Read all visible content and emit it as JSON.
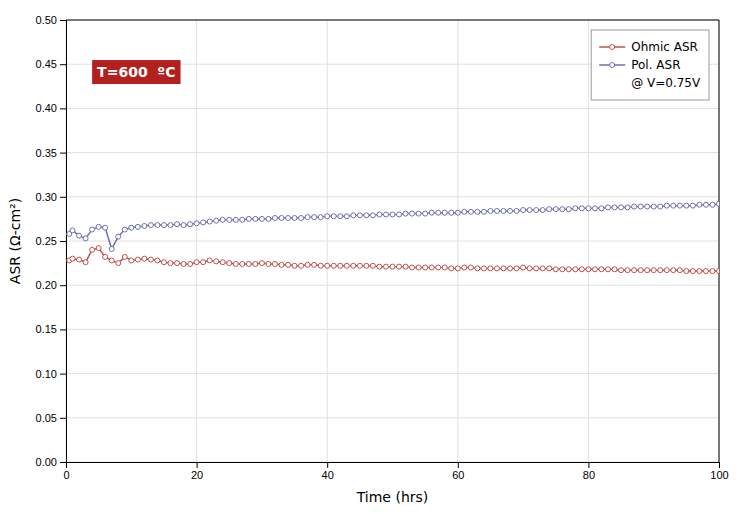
{
  "chart_data": {
    "type": "line",
    "xlabel": "Time (hrs)",
    "ylabel": "ASR (Ω-cm²)",
    "xlim": [
      0,
      100
    ],
    "ylim": [
      0.0,
      0.5
    ],
    "xticks": [
      0,
      20,
      40,
      60,
      80,
      100
    ],
    "yticks": [
      {
        "value": 0.0,
        "label": "0.00"
      },
      {
        "value": 0.05,
        "label": "0.05"
      },
      {
        "value": 0.1,
        "label": "0.10"
      },
      {
        "value": 0.15,
        "label": "0.15"
      },
      {
        "value": 0.2,
        "label": "0.20"
      },
      {
        "value": 0.25,
        "label": "0.25"
      },
      {
        "value": 0.3,
        "label": "0.30"
      },
      {
        "value": 0.35,
        "label": "0.35"
      },
      {
        "value": 0.4,
        "label": "0.40"
      },
      {
        "value": 0.45,
        "label": "0.45"
      },
      {
        "value": 0.5,
        "label": "0.50"
      }
    ],
    "grid": true,
    "legend": "top-right",
    "legend_note": "@ V=0.75V",
    "annotations": [
      {
        "text": "T=600  ºC",
        "color": "#B22020"
      }
    ],
    "x": [
      0.5,
      1,
      2,
      3,
      4,
      5,
      6,
      7,
      8,
      9,
      10,
      11,
      12,
      13,
      14,
      15,
      16,
      17,
      18,
      19,
      20,
      21,
      22,
      23,
      24,
      25,
      26,
      27,
      28,
      29,
      30,
      31,
      32,
      33,
      34,
      35,
      36,
      37,
      38,
      39,
      40,
      41,
      42,
      43,
      44,
      45,
      46,
      47,
      48,
      49,
      50,
      51,
      52,
      53,
      54,
      55,
      56,
      57,
      58,
      59,
      60,
      61,
      62,
      63,
      64,
      65,
      66,
      67,
      68,
      69,
      70,
      71,
      72,
      73,
      74,
      75,
      76,
      77,
      78,
      79,
      80,
      81,
      82,
      83,
      84,
      85,
      86,
      87,
      88,
      89,
      90,
      91,
      92,
      93,
      94,
      95,
      96,
      97,
      98,
      99,
      100
    ],
    "series": [
      {
        "name": "Ohmic ASR",
        "color": "#C0504D",
        "marker": "circle",
        "values": [
          0.228,
          0.23,
          0.229,
          0.226,
          0.24,
          0.242,
          0.232,
          0.228,
          0.225,
          0.232,
          0.228,
          0.229,
          0.23,
          0.229,
          0.228,
          0.226,
          0.225,
          0.225,
          0.224,
          0.224,
          0.226,
          0.226,
          0.228,
          0.227,
          0.226,
          0.225,
          0.224,
          0.224,
          0.224,
          0.224,
          0.225,
          0.224,
          0.224,
          0.223,
          0.223,
          0.222,
          0.222,
          0.223,
          0.223,
          0.222,
          0.222,
          0.222,
          0.222,
          0.222,
          0.222,
          0.222,
          0.222,
          0.222,
          0.221,
          0.221,
          0.221,
          0.221,
          0.221,
          0.22,
          0.22,
          0.22,
          0.22,
          0.22,
          0.22,
          0.219,
          0.219,
          0.22,
          0.22,
          0.219,
          0.219,
          0.219,
          0.219,
          0.219,
          0.219,
          0.219,
          0.22,
          0.219,
          0.219,
          0.219,
          0.219,
          0.218,
          0.218,
          0.218,
          0.218,
          0.218,
          0.218,
          0.218,
          0.218,
          0.218,
          0.218,
          0.217,
          0.217,
          0.217,
          0.217,
          0.217,
          0.217,
          0.217,
          0.217,
          0.217,
          0.217,
          0.216,
          0.216,
          0.216,
          0.216,
          0.216,
          0.216
        ]
      },
      {
        "name": "Pol. ASR",
        "color": "#7070B0",
        "marker": "circle",
        "values": [
          0.258,
          0.262,
          0.256,
          0.253,
          0.263,
          0.266,
          0.265,
          0.241,
          0.255,
          0.263,
          0.265,
          0.266,
          0.267,
          0.268,
          0.268,
          0.268,
          0.268,
          0.269,
          0.268,
          0.269,
          0.27,
          0.271,
          0.272,
          0.273,
          0.274,
          0.274,
          0.274,
          0.274,
          0.275,
          0.275,
          0.275,
          0.275,
          0.276,
          0.276,
          0.276,
          0.276,
          0.276,
          0.277,
          0.277,
          0.277,
          0.278,
          0.278,
          0.278,
          0.278,
          0.279,
          0.279,
          0.279,
          0.279,
          0.28,
          0.28,
          0.28,
          0.28,
          0.281,
          0.281,
          0.281,
          0.281,
          0.282,
          0.282,
          0.282,
          0.282,
          0.282,
          0.283,
          0.283,
          0.283,
          0.283,
          0.284,
          0.284,
          0.284,
          0.284,
          0.284,
          0.285,
          0.285,
          0.285,
          0.285,
          0.286,
          0.286,
          0.286,
          0.286,
          0.287,
          0.287,
          0.287,
          0.287,
          0.287,
          0.288,
          0.288,
          0.288,
          0.288,
          0.289,
          0.289,
          0.289,
          0.289,
          0.289,
          0.29,
          0.29,
          0.29,
          0.29,
          0.29,
          0.291,
          0.291,
          0.291,
          0.292
        ]
      }
    ]
  }
}
